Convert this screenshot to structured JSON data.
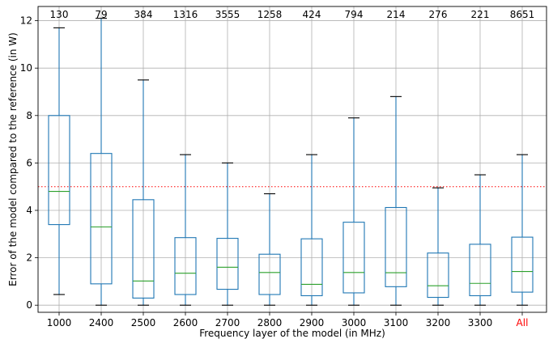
{
  "chart_data": {
    "type": "box",
    "title": "",
    "xlabel": "Frequency layer of the model (in MHz)",
    "ylabel": "Error of the model compared to the reference (in W)",
    "ylim": [
      -0.3,
      12.6
    ],
    "yticks": [
      0,
      2,
      4,
      6,
      8,
      10,
      12
    ],
    "grid": true,
    "reference_line": {
      "y": 5,
      "style": "dotted",
      "color": "#ff0000"
    },
    "categories": [
      "1000",
      "2400",
      "2500",
      "2600",
      "2700",
      "2800",
      "2900",
      "3000",
      "3100",
      "3200",
      "3300",
      "All"
    ],
    "counts": [
      "130",
      "79",
      "384",
      "1316",
      "3555",
      "1258",
      "424",
      "794",
      "214",
      "276",
      "221",
      "8651"
    ],
    "boxes": [
      {
        "whisker_low": 0.45,
        "q1": 3.4,
        "median": 4.8,
        "q3": 8.0,
        "whisker_high": 11.7
      },
      {
        "whisker_low": 0.0,
        "q1": 0.9,
        "median": 3.3,
        "q3": 6.4,
        "whisker_high": 12.1
      },
      {
        "whisker_low": 0.0,
        "q1": 0.3,
        "median": 1.02,
        "q3": 4.45,
        "whisker_high": 9.5
      },
      {
        "whisker_low": 0.0,
        "q1": 0.45,
        "median": 1.35,
        "q3": 2.85,
        "whisker_high": 6.35
      },
      {
        "whisker_low": 0.0,
        "q1": 0.67,
        "median": 1.6,
        "q3": 2.82,
        "whisker_high": 6.0
      },
      {
        "whisker_low": 0.0,
        "q1": 0.45,
        "median": 1.38,
        "q3": 2.15,
        "whisker_high": 4.7
      },
      {
        "whisker_low": 0.0,
        "q1": 0.4,
        "median": 0.88,
        "q3": 2.8,
        "whisker_high": 6.35
      },
      {
        "whisker_low": 0.0,
        "q1": 0.52,
        "median": 1.38,
        "q3": 3.5,
        "whisker_high": 7.9
      },
      {
        "whisker_low": 0.0,
        "q1": 0.78,
        "median": 1.37,
        "q3": 4.12,
        "whisker_high": 8.8
      },
      {
        "whisker_low": 0.0,
        "q1": 0.33,
        "median": 0.82,
        "q3": 2.2,
        "whisker_high": 4.95
      },
      {
        "whisker_low": 0.0,
        "q1": 0.4,
        "median": 0.92,
        "q3": 2.57,
        "whisker_high": 5.5
      },
      {
        "whisker_low": 0.0,
        "q1": 0.55,
        "median": 1.42,
        "q3": 2.87,
        "whisker_high": 6.35
      }
    ],
    "highlight_category": {
      "label": "All",
      "color": "#ff0000"
    },
    "colors": {
      "box": "#1f77b4",
      "median": "#2ca02c",
      "cap": "#000000",
      "grid": "#b0b0b0",
      "text": "#000000"
    }
  }
}
